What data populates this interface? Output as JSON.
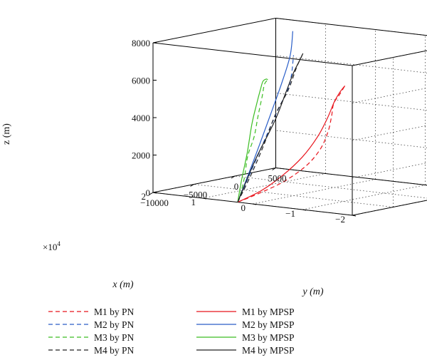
{
  "chart_data": {
    "type": "line3d",
    "title": "",
    "xlabel": "x (m)",
    "ylabel": "y (m)",
    "zlabel": "z (m)",
    "x_multiplier_label": "×10",
    "x_multiplier_exponent": "4",
    "xlim": [
      -2,
      2
    ],
    "ylim": [
      -10000,
      5000
    ],
    "zlim": [
      0,
      8000
    ],
    "x_ticks": [
      "−2",
      "−1",
      "0",
      "1",
      "2"
    ],
    "y_ticks": [
      "−10000",
      "−5000",
      "0",
      "5000"
    ],
    "z_ticks": [
      "0",
      "2000",
      "4000",
      "6000",
      "8000"
    ],
    "grid": true,
    "legend_position": "bottom",
    "series": [
      {
        "name": "M1 by PN",
        "color": "#e8141c",
        "style": "dashed",
        "points": [
          [
            0.3,
            -10000,
            0
          ],
          [
            -0.1,
            -9600,
            600
          ],
          [
            -0.5,
            -9100,
            1300
          ],
          [
            -0.85,
            -8550,
            2200
          ],
          [
            -1.05,
            -8100,
            3100
          ],
          [
            -1.15,
            -7800,
            4000
          ],
          [
            -1.18,
            -7550,
            4800
          ],
          [
            -1.2,
            -7400,
            5500
          ],
          [
            -1.3,
            -7300,
            6000
          ],
          [
            -1.4,
            -7250,
            6500
          ]
        ]
      },
      {
        "name": "M2 by PN",
        "color": "#2a5ec8",
        "style": "dashed",
        "points": [
          [
            0.3,
            -10000,
            0
          ],
          [
            0.2,
            -8000,
            2500
          ],
          [
            0.1,
            -6500,
            4500
          ],
          [
            0.0,
            -5500,
            6000
          ],
          [
            0.0,
            -5000,
            7500
          ]
        ]
      },
      {
        "name": "M3 by PN",
        "color": "#3cbe23",
        "style": "dashed",
        "points": [
          [
            0.3,
            -10000,
            0
          ],
          [
            0.6,
            -7800,
            200
          ],
          [
            0.9,
            -5500,
            800
          ],
          [
            1.2,
            -3300,
            1600
          ],
          [
            1.4,
            -1300,
            2400
          ],
          [
            1.6,
            400,
            3300
          ],
          [
            1.7,
            1500,
            4200
          ],
          [
            1.75,
            2100,
            4800
          ],
          [
            1.75,
            2500,
            5000
          ]
        ]
      },
      {
        "name": "M4 by PN",
        "color": "#222222",
        "style": "dashed",
        "points": [
          [
            0.3,
            -10000,
            0
          ],
          [
            0.4,
            -7800,
            1200
          ],
          [
            0.5,
            -5600,
            2600
          ],
          [
            0.6,
            -3600,
            4000
          ],
          [
            0.6,
            -2000,
            5200
          ],
          [
            0.6,
            -1000,
            6300
          ],
          [
            0.6,
            -200,
            7000
          ]
        ]
      },
      {
        "name": "M1 by MPSP",
        "color": "#e8141c",
        "style": "solid",
        "points": [
          [
            0.3,
            -10000,
            0
          ],
          [
            -0.1,
            -9550,
            700
          ],
          [
            -0.45,
            -9000,
            1600
          ],
          [
            -0.75,
            -8500,
            2600
          ],
          [
            -0.98,
            -8050,
            3700
          ],
          [
            -1.12,
            -7700,
            4700
          ],
          [
            -1.22,
            -7450,
            5600
          ],
          [
            -1.3,
            -7300,
            6100
          ],
          [
            -1.4,
            -7250,
            6500
          ]
        ]
      },
      {
        "name": "M2 by MPSP",
        "color": "#2a5ec8",
        "style": "solid",
        "points": [
          [
            0.3,
            -10000,
            0
          ],
          [
            0.2,
            -8600,
            2200
          ],
          [
            0.1,
            -7300,
            4400
          ],
          [
            0.0,
            -6400,
            6200
          ],
          [
            -0.05,
            -5700,
            7600
          ],
          [
            0.0,
            -5100,
            8800
          ]
        ]
      },
      {
        "name": "M3 by MPSP",
        "color": "#3cbe23",
        "style": "solid",
        "points": [
          [
            0.3,
            -10000,
            0
          ],
          [
            0.5,
            -8300,
            1000
          ],
          [
            0.7,
            -6400,
            2200
          ],
          [
            0.95,
            -4300,
            3500
          ],
          [
            1.2,
            -2200,
            4300
          ],
          [
            1.4,
            -500,
            4900
          ],
          [
            1.6,
            1000,
            5100
          ],
          [
            1.7,
            2000,
            5100
          ],
          [
            1.75,
            2500,
            5000
          ]
        ]
      },
      {
        "name": "M4 by MPSP",
        "color": "#222222",
        "style": "solid",
        "points": [
          [
            0.3,
            -10000,
            0
          ],
          [
            0.2,
            -8400,
            2200
          ],
          [
            0.1,
            -6700,
            4100
          ],
          [
            0.15,
            -5000,
            5500
          ],
          [
            0.3,
            -3200,
            6300
          ],
          [
            0.45,
            -1500,
            6800
          ],
          [
            0.6,
            -200,
            7000
          ]
        ]
      }
    ]
  }
}
